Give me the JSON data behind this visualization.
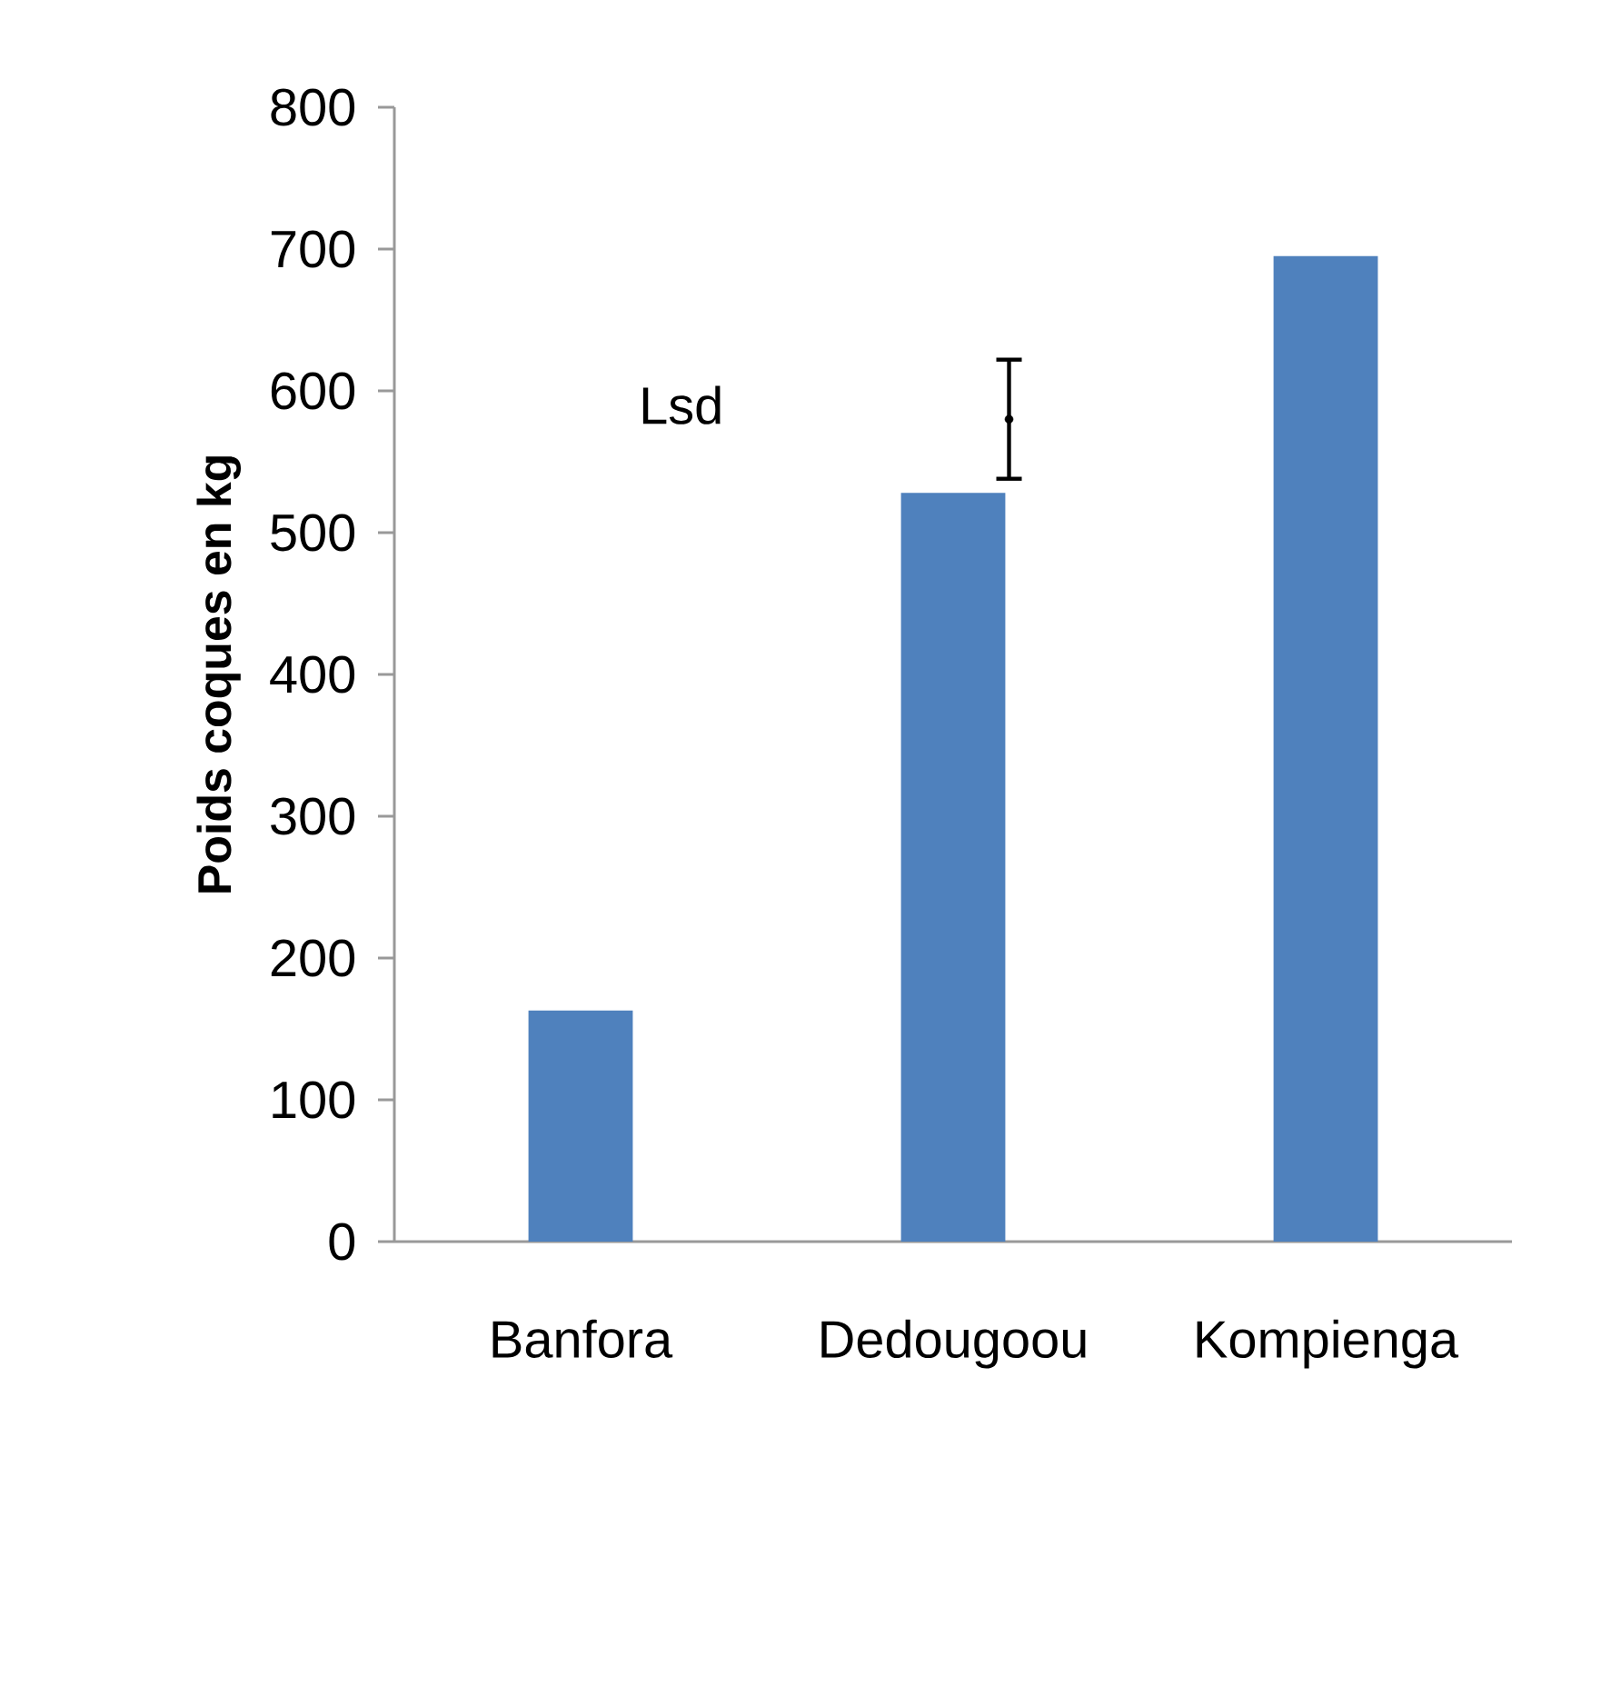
{
  "chart_data": {
    "type": "bar",
    "ylabel": "Poids coques en kg",
    "categories": [
      "Banfora",
      "Dedougoou",
      "Kompienga"
    ],
    "series": [
      {
        "color": "#4f81bd",
        "values": [
          163,
          528,
          695
        ]
      },
      {
        "type": "scatter",
        "color": "#000000",
        "values": [
          null,
          580,
          null
        ],
        "errors": [
          null,
          42,
          null
        ]
      }
    ],
    "annotations": [
      "Lsd"
    ],
    "ylim": [
      0,
      800
    ],
    "yticks": [
      0,
      100,
      200,
      300,
      400,
      500,
      600,
      700,
      800
    ],
    "grid": false
  }
}
